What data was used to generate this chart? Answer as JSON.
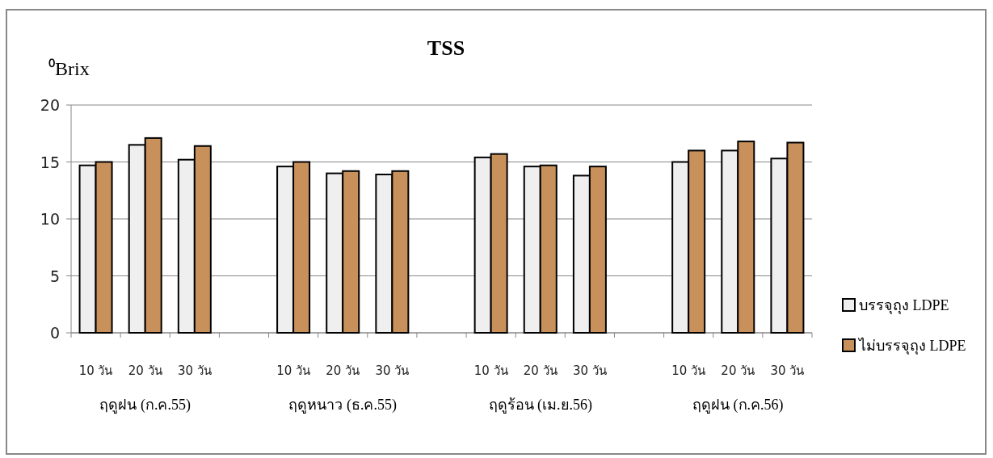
{
  "chart_data": {
    "type": "bar",
    "title": "TSS",
    "ylabel": "⁰Brix",
    "categories": [
      "10 วัน",
      "20 วัน",
      "30 วัน",
      null,
      "10 วัน",
      "20 วัน",
      "30 วัน",
      null,
      "10 วัน",
      "20 วัน",
      "30 วัน",
      null,
      "10 วัน",
      "20 วัน",
      "30 วัน"
    ],
    "series": [
      {
        "name": "บรรจุถุง LDPE",
        "color": "#efefef",
        "values": [
          14.7,
          16.5,
          15.2,
          null,
          14.6,
          14.0,
          13.9,
          null,
          15.4,
          14.6,
          13.8,
          null,
          15.0,
          16.0,
          15.3
        ]
      },
      {
        "name": "ไม่บรรจุถุง LDPE",
        "color": "#c8915c",
        "values": [
          15.0,
          17.1,
          16.4,
          null,
          15.0,
          14.2,
          14.2,
          null,
          15.7,
          14.7,
          14.6,
          null,
          16.0,
          16.8,
          16.7
        ]
      }
    ],
    "ylim": [
      0,
      20
    ],
    "yticks": [
      0,
      5,
      10,
      15,
      20
    ],
    "grid": "y",
    "legend": "right",
    "annotations": [
      "ฤดูฝน (ก.ค.55)",
      "ฤดูหนาว (ธ.ค.55)",
      "ฤดูร้อน (เม.ย.56)",
      "ฤดูฝน (ก.ค.56)"
    ]
  }
}
